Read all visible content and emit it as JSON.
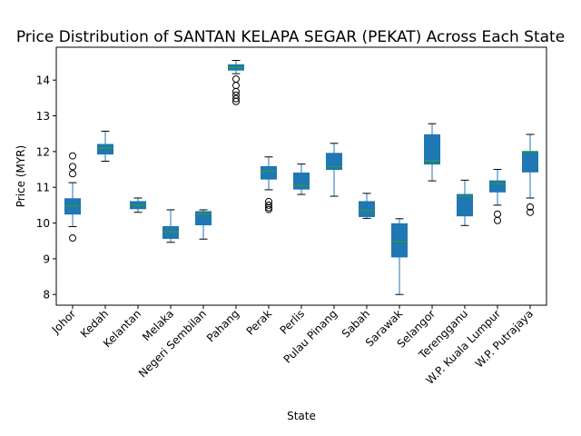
{
  "chart_data": {
    "type": "box",
    "title": "Price Distribution of SANTAN KELAPA SEGAR (PEKAT) Across Each State",
    "xlabel": "State",
    "ylabel": "Price (MYR)",
    "ylim": [
      7.7,
      14.92
    ],
    "yticks": [
      8,
      9,
      10,
      11,
      12,
      13,
      14
    ],
    "grid": false,
    "colors": {
      "box": "#1f77b4",
      "median": "#2ca02c",
      "whisker": "#1f77b4",
      "flier": "#000000"
    },
    "categories": [
      "Johor",
      "Kedah",
      "Kelantan",
      "Melaka",
      "Negeri Sembilan",
      "Pahang",
      "Perak",
      "Perlis",
      "Pulau Pinang",
      "Sabah",
      "Sarawak",
      "Selangor",
      "Terengganu",
      "W.P. Kuala Lumpur",
      "W.P. Putrajaya"
    ],
    "boxes": [
      {
        "whislo": 9.9,
        "q1": 10.25,
        "med": 10.48,
        "q3": 10.68,
        "whishi": 11.13,
        "fliers": [
          9.58,
          11.38,
          11.58,
          11.88
        ]
      },
      {
        "whislo": 11.73,
        "q1": 11.93,
        "med": 12.1,
        "q3": 12.2,
        "whishi": 12.57,
        "fliers": []
      },
      {
        "whislo": 10.3,
        "q1": 10.4,
        "med": 10.5,
        "q3": 10.6,
        "whishi": 10.7,
        "fliers": []
      },
      {
        "whislo": 9.46,
        "q1": 9.57,
        "med": 9.75,
        "q3": 9.9,
        "whishi": 10.37,
        "fliers": []
      },
      {
        "whislo": 9.55,
        "q1": 9.95,
        "med": 10.25,
        "q3": 10.32,
        "whishi": 10.37,
        "fliers": []
      },
      {
        "whislo": 14.18,
        "q1": 14.28,
        "med": 14.35,
        "q3": 14.43,
        "whishi": 14.55,
        "fliers": [
          13.4,
          13.48,
          13.58,
          13.68,
          13.85,
          14.03
        ]
      },
      {
        "whislo": 10.93,
        "q1": 11.23,
        "med": 11.45,
        "q3": 11.58,
        "whishi": 11.85,
        "fliers": [
          10.38,
          10.43,
          10.5,
          10.6
        ]
      },
      {
        "whislo": 10.8,
        "q1": 10.95,
        "med": 11.05,
        "q3": 11.4,
        "whishi": 11.65,
        "fliers": []
      },
      {
        "whislo": 10.75,
        "q1": 11.5,
        "med": 11.58,
        "q3": 11.95,
        "whishi": 12.23,
        "fliers": []
      },
      {
        "whislo": 10.13,
        "q1": 10.18,
        "med": 10.35,
        "q3": 10.6,
        "whishi": 10.83,
        "fliers": []
      },
      {
        "whislo": 8.0,
        "q1": 9.05,
        "med": 9.48,
        "q3": 9.98,
        "whishi": 10.12,
        "fliers": []
      },
      {
        "whislo": 11.18,
        "q1": 11.65,
        "med": 11.75,
        "q3": 12.47,
        "whishi": 12.78,
        "fliers": []
      },
      {
        "whislo": 9.93,
        "q1": 10.2,
        "med": 10.75,
        "q3": 10.8,
        "whishi": 11.2,
        "fliers": []
      },
      {
        "whislo": 10.5,
        "q1": 10.87,
        "med": 11.1,
        "q3": 11.18,
        "whishi": 11.5,
        "fliers": [
          10.07,
          10.25
        ]
      },
      {
        "whislo": 10.7,
        "q1": 11.43,
        "med": 12.0,
        "q3": 12.0,
        "whishi": 12.48,
        "fliers": [
          10.3,
          10.45
        ]
      }
    ]
  }
}
